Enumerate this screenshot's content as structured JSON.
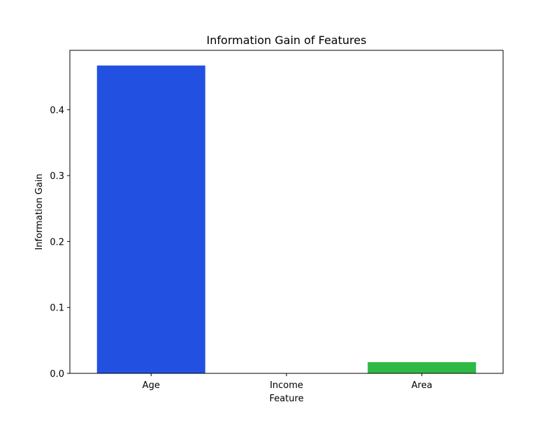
{
  "chart_data": {
    "type": "bar",
    "title": "Information Gain of Features",
    "xlabel": "Feature",
    "ylabel": "Information Gain",
    "categories": [
      "Age",
      "Income",
      "Area"
    ],
    "values": [
      0.467,
      0.0,
      0.017
    ],
    "colors": [
      "#2251e2",
      "#ffffff",
      "#2db944"
    ],
    "ylim": [
      0,
      0.49
    ],
    "yticks": [
      0.0,
      0.1,
      0.2,
      0.3,
      0.4
    ],
    "ytick_labels": [
      "0.0",
      "0.1",
      "0.2",
      "0.3",
      "0.4"
    ],
    "grid": false,
    "legend": "none"
  }
}
